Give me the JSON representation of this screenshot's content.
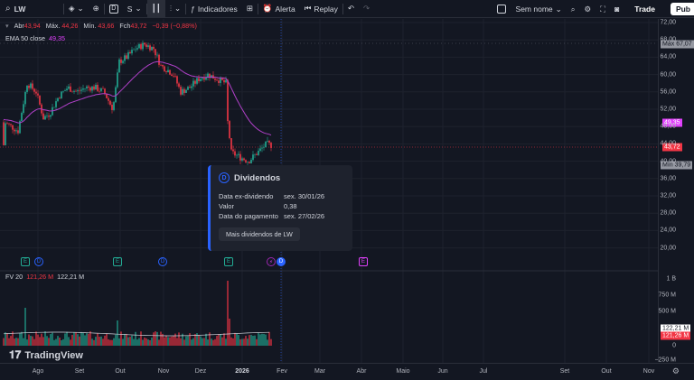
{
  "toolbar": {
    "symbol": "LW",
    "interval": "D",
    "compare": "S",
    "indicators_label": "Indicadores",
    "alert_label": "Alerta",
    "replay_label": "Replay",
    "layout_name": "Sem nome",
    "trade_label": "Trade",
    "publish_label": "Pub"
  },
  "legend": {
    "open_label": "Abr",
    "open": "43,94",
    "high_label": "Máx.",
    "high": "44,26",
    "low_label": "Mín.",
    "low": "43,66",
    "close_label": "Fch",
    "close": "43,72",
    "change": "−0,39 (−0,88%)",
    "ema_label": "EMA 50 close",
    "ema_value": "49,35"
  },
  "volume_legend": {
    "label": "FV 20",
    "v1": "121,26 M",
    "v2": "122,21 M"
  },
  "price_axis": {
    "ticks": [
      "72,00",
      "68,00",
      "64,00",
      "60,00",
      "56,00",
      "52,00",
      "48,00",
      "44,00",
      "40,00",
      "36,00",
      "32,00",
      "28,00",
      "24,00",
      "20,00"
    ],
    "tick_values": [
      72,
      68,
      64,
      60,
      56,
      52,
      48,
      44,
      40,
      36,
      32,
      28,
      24,
      20
    ],
    "max_tag": "Máx",
    "max_value": "67,07",
    "ema_tag": "49,35",
    "last_tag": "43,72",
    "min_tag": "Mín",
    "min_value": "39,79",
    "vol_ticks": [
      "1 B",
      "750 M",
      "500 M",
      "250 M",
      "0",
      "−250 M"
    ],
    "vol_tag_1": "122,21 M",
    "vol_tag_2": "121,26 M"
  },
  "tooltip": {
    "title": "Dividendos",
    "rows": [
      {
        "key": "Data ex-dividendo",
        "value": "sex. 30/01/26"
      },
      {
        "key": "Valor",
        "value": "0,38"
      },
      {
        "key": "Data do pagamento",
        "value": "sex. 27/02/26"
      }
    ],
    "button": "Mais dividendos de LW"
  },
  "time_axis": [
    "Ago",
    "Set",
    "Out",
    "Nov",
    "Dez",
    "2026",
    "Fev",
    "Mar",
    "Abr",
    "Maio",
    "Jun",
    "Jul",
    "Set",
    "Out",
    "Nov"
  ],
  "events": [
    "E",
    "D",
    "E",
    "D",
    "E",
    "D",
    "E"
  ],
  "logo_text": "TradingView",
  "colors": {
    "up": "#22ab94",
    "down": "#f23645",
    "ema": "#b040c8",
    "bg": "#131722"
  }
}
